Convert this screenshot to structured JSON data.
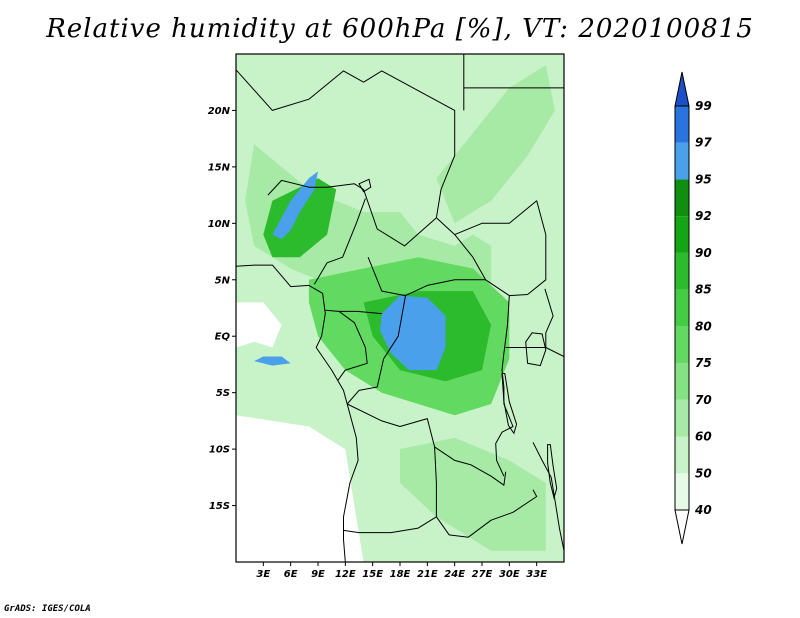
{
  "title": "Relative humidity at 600hPa [%], VT: 2020100815",
  "credit": "GrADS: IGES/COLA",
  "map": {
    "lon_range": [
      0,
      36
    ],
    "lat_range": [
      -20,
      25
    ],
    "lat_ticks": [
      {
        "value": 20,
        "label": "20N"
      },
      {
        "value": 15,
        "label": "15N"
      },
      {
        "value": 10,
        "label": "10N"
      },
      {
        "value": 5,
        "label": "5N"
      },
      {
        "value": 0,
        "label": "EQ"
      },
      {
        "value": -5,
        "label": "5S"
      },
      {
        "value": -10,
        "label": "10S"
      },
      {
        "value": -15,
        "label": "15S"
      }
    ],
    "lon_ticks": [
      {
        "value": 3,
        "label": "3E"
      },
      {
        "value": 6,
        "label": "6E"
      },
      {
        "value": 9,
        "label": "9E"
      },
      {
        "value": 12,
        "label": "12E"
      },
      {
        "value": 15,
        "label": "15E"
      },
      {
        "value": 18,
        "label": "18E"
      },
      {
        "value": 21,
        "label": "21E"
      },
      {
        "value": 24,
        "label": "24E"
      },
      {
        "value": 27,
        "label": "27E"
      },
      {
        "value": 30,
        "label": "30E"
      },
      {
        "value": 33,
        "label": "33E"
      }
    ]
  },
  "colorbar": {
    "levels": [
      "40",
      "50",
      "60",
      "70",
      "75",
      "80",
      "85",
      "90",
      "92",
      "95",
      "97",
      "99"
    ],
    "colors": [
      "#ffffff",
      "#e6fae6",
      "#c8f2c8",
      "#a6eaa6",
      "#84e284",
      "#62da62",
      "#45cc45",
      "#2cbb2c",
      "#14a514",
      "#0f8f0f",
      "#4aa0ea",
      "#2a74e0",
      "#1b4fc8"
    ]
  },
  "humidity_regions": [
    {
      "name": "sahel-moist-band",
      "color": "#a6eaa6",
      "lonlat": [
        [
          2,
          17
        ],
        [
          8,
          13
        ],
        [
          14,
          11
        ],
        [
          18,
          11
        ],
        [
          20,
          9
        ],
        [
          24,
          8
        ],
        [
          26,
          9
        ],
        [
          28,
          8
        ],
        [
          28,
          3
        ],
        [
          24,
          1
        ],
        [
          20,
          2
        ],
        [
          16,
          3
        ],
        [
          12,
          4
        ],
        [
          6,
          6
        ],
        [
          2,
          8
        ],
        [
          1,
          12
        ]
      ]
    },
    {
      "name": "northeast-streak",
      "color": "#a6eaa6",
      "lonlat": [
        [
          22,
          14
        ],
        [
          26,
          18
        ],
        [
          30,
          22
        ],
        [
          34,
          24
        ],
        [
          35,
          20
        ],
        [
          32,
          16
        ],
        [
          28,
          12
        ],
        [
          24,
          10
        ]
      ]
    },
    {
      "name": "congo-basin",
      "color": "#62da62",
      "lonlat": [
        [
          8,
          5
        ],
        [
          14,
          6
        ],
        [
          20,
          7
        ],
        [
          26,
          6
        ],
        [
          30,
          3
        ],
        [
          30,
          -2
        ],
        [
          28,
          -6
        ],
        [
          24,
          -7
        ],
        [
          20,
          -6
        ],
        [
          16,
          -5
        ],
        [
          12,
          -3
        ],
        [
          9,
          0
        ],
        [
          8,
          3
        ]
      ]
    },
    {
      "name": "south-highlands",
      "color": "#a6eaa6",
      "lonlat": [
        [
          18,
          -10
        ],
        [
          24,
          -9
        ],
        [
          30,
          -11
        ],
        [
          34,
          -13
        ],
        [
          34,
          -19
        ],
        [
          28,
          -19
        ],
        [
          22,
          -16
        ],
        [
          18,
          -13
        ]
      ]
    },
    {
      "name": "nigeria-core",
      "color": "#2cbb2c",
      "lonlat": [
        [
          4,
          12
        ],
        [
          9,
          14
        ],
        [
          11,
          13
        ],
        [
          10,
          9
        ],
        [
          7,
          7
        ],
        [
          4,
          7
        ],
        [
          3,
          9
        ]
      ]
    },
    {
      "name": "congo-core",
      "color": "#2cbb2c",
      "lonlat": [
        [
          14,
          3
        ],
        [
          20,
          4
        ],
        [
          26,
          4
        ],
        [
          28,
          1
        ],
        [
          27,
          -3
        ],
        [
          23,
          -4
        ],
        [
          18,
          -3
        ],
        [
          15,
          0
        ]
      ]
    },
    {
      "name": "nigeria-peak",
      "color": "#4aa0ea",
      "lonlat": [
        [
          4,
          9
        ],
        [
          6,
          12
        ],
        [
          8,
          14
        ],
        [
          9,
          14.6
        ],
        [
          8.6,
          13
        ],
        [
          7,
          11
        ],
        [
          6,
          9.4
        ],
        [
          5,
          8.6
        ]
      ]
    },
    {
      "name": "congo-peak",
      "color": "#4aa0ea",
      "lonlat": [
        [
          16,
          2
        ],
        [
          18,
          3.6
        ],
        [
          21,
          3.4
        ],
        [
          23,
          1.8
        ],
        [
          23,
          -1
        ],
        [
          22,
          -3
        ],
        [
          19,
          -3
        ],
        [
          17,
          -1.5
        ],
        [
          15.8,
          0.5
        ]
      ]
    },
    {
      "name": "gulf-guinea-peak",
      "color": "#4aa0ea",
      "lonlat": [
        [
          2,
          -2.2
        ],
        [
          4,
          -2.6
        ],
        [
          6,
          -2.4
        ],
        [
          5,
          -1.8
        ],
        [
          3,
          -1.8
        ]
      ]
    },
    {
      "name": "dry-west-ocean",
      "color": "#ffffff",
      "lonlat": [
        [
          0,
          3
        ],
        [
          3,
          3
        ],
        [
          5,
          1
        ],
        [
          4,
          -1
        ],
        [
          2,
          -0.5
        ],
        [
          0,
          -1
        ]
      ]
    },
    {
      "name": "dry-south-atlantic",
      "color": "#ffffff",
      "lonlat": [
        [
          0,
          -7
        ],
        [
          8,
          -8
        ],
        [
          12,
          -10
        ],
        [
          13,
          -15
        ],
        [
          14,
          -20
        ],
        [
          0,
          -20
        ]
      ]
    }
  ],
  "borders": [
    {
      "name": "coastline-west",
      "lonlat": [
        [
          0,
          6.2
        ],
        [
          2,
          6.3
        ],
        [
          4,
          6.3
        ],
        [
          6,
          4.4
        ],
        [
          8,
          4.5
        ],
        [
          9.5,
          3.8
        ],
        [
          9.8,
          2
        ],
        [
          9.4,
          0
        ],
        [
          8.8,
          -1
        ],
        [
          10.5,
          -3
        ],
        [
          11.8,
          -4.8
        ],
        [
          12.2,
          -6
        ],
        [
          13.2,
          -9
        ],
        [
          13.4,
          -11
        ],
        [
          12.5,
          -13
        ],
        [
          11.8,
          -16
        ],
        [
          11.8,
          -18
        ],
        [
          12,
          -20
        ]
      ]
    },
    {
      "name": "border-nigeria-niger",
      "lonlat": [
        [
          3.5,
          12.5
        ],
        [
          5,
          13.8
        ],
        [
          8,
          13.2
        ],
        [
          10,
          13.2
        ],
        [
          13,
          13.5
        ],
        [
          14,
          13
        ]
      ]
    },
    {
      "name": "border-nigeria-cameroon",
      "lonlat": [
        [
          8.6,
          4.6
        ],
        [
          10,
          6.5
        ],
        [
          11.7,
          7
        ],
        [
          13.2,
          10
        ],
        [
          14.2,
          12.2
        ]
      ]
    },
    {
      "name": "border-chad",
      "lonlat": [
        [
          14,
          13
        ],
        [
          15.5,
          9.5
        ],
        [
          18.5,
          8
        ],
        [
          22,
          10.5
        ],
        [
          22.5,
          13
        ],
        [
          24,
          16
        ],
        [
          24,
          20
        ],
        [
          16,
          23.5
        ],
        [
          14,
          22.5
        ]
      ]
    },
    {
      "name": "border-niger-libya",
      "lonlat": [
        [
          0,
          23.6
        ],
        [
          4,
          20
        ],
        [
          8,
          21
        ],
        [
          11.8,
          23.5
        ],
        [
          14,
          22.5
        ]
      ]
    },
    {
      "name": "border-libya-egypt",
      "lonlat": [
        [
          25,
          25
        ],
        [
          25,
          20
        ]
      ]
    },
    {
      "name": "border-sudan-egypt",
      "lonlat": [
        [
          25,
          22
        ],
        [
          36,
          22
        ]
      ]
    },
    {
      "name": "border-car",
      "lonlat": [
        [
          14.5,
          7
        ],
        [
          16,
          4
        ],
        [
          18.6,
          3.6
        ],
        [
          21,
          4.5
        ],
        [
          24,
          5
        ],
        [
          27.4,
          5
        ],
        [
          26,
          7
        ],
        [
          24,
          9
        ],
        [
          22,
          10.5
        ]
      ]
    },
    {
      "name": "border-south-sudan",
      "lonlat": [
        [
          24,
          9
        ],
        [
          27,
          10
        ],
        [
          30,
          10
        ],
        [
          33,
          12
        ],
        [
          34,
          9
        ],
        [
          34,
          5
        ],
        [
          32,
          3.7
        ],
        [
          30,
          3.6
        ],
        [
          27.4,
          5
        ]
      ]
    },
    {
      "name": "border-congo-drc",
      "lonlat": [
        [
          18.6,
          3.6
        ],
        [
          17.8,
          0
        ],
        [
          16.2,
          -2
        ],
        [
          15.5,
          -4.5
        ],
        [
          13.5,
          -4.8
        ],
        [
          12.2,
          -6
        ]
      ]
    },
    {
      "name": "border-gabon-congo",
      "lonlat": [
        [
          11.3,
          2.2
        ],
        [
          13,
          1.2
        ],
        [
          14.2,
          -1
        ],
        [
          14.4,
          -2.4
        ],
        [
          12,
          -3
        ],
        [
          11.2,
          -3.9
        ]
      ]
    },
    {
      "name": "border-cameroon-south",
      "lonlat": [
        [
          9.8,
          2.3
        ],
        [
          11.3,
          2.2
        ],
        [
          13.3,
          2.2
        ],
        [
          16,
          2
        ]
      ]
    },
    {
      "name": "border-drc-angola",
      "lonlat": [
        [
          12.2,
          -6
        ],
        [
          16,
          -7.5
        ],
        [
          18,
          -8
        ],
        [
          21,
          -7.3
        ],
        [
          21.8,
          -9.8
        ],
        [
          24,
          -11
        ],
        [
          25.8,
          -11.4
        ],
        [
          28,
          -12.4
        ],
        [
          29.4,
          -13.2
        ],
        [
          29.6,
          -12
        ]
      ]
    },
    {
      "name": "border-drc-east",
      "lonlat": [
        [
          30,
          3.6
        ],
        [
          29.8,
          1
        ],
        [
          29.4,
          -1.5
        ],
        [
          29.2,
          -3
        ],
        [
          29.4,
          -4.5
        ],
        [
          29.4,
          -6
        ],
        [
          30.4,
          -8
        ],
        [
          29.2,
          -8.5
        ],
        [
          28.5,
          -9.5
        ],
        [
          28.6,
          -11
        ],
        [
          29.4,
          -12.4
        ]
      ]
    },
    {
      "name": "border-angola-zambia-namibia",
      "lonlat": [
        [
          21.8,
          -9.8
        ],
        [
          22,
          -13
        ],
        [
          22,
          -16
        ],
        [
          20,
          -17
        ],
        [
          17,
          -17.4
        ],
        [
          13.5,
          -17.4
        ],
        [
          11.8,
          -17.2
        ]
      ]
    },
    {
      "name": "border-zambia-south",
      "lonlat": [
        [
          22,
          -16
        ],
        [
          23.4,
          -17.6
        ],
        [
          25.5,
          -17.8
        ],
        [
          28,
          -16.3
        ],
        [
          30.4,
          -15.6
        ],
        [
          33,
          -14.2
        ],
        [
          32.6,
          -13.6
        ]
      ]
    },
    {
      "name": "border-tanzania",
      "lonlat": [
        [
          29.6,
          -1
        ],
        [
          30.8,
          -1
        ],
        [
          34,
          -1
        ],
        [
          36,
          -1.8
        ]
      ]
    },
    {
      "name": "border-uganda-kenya",
      "lonlat": [
        [
          33.9,
          4.2
        ],
        [
          34.8,
          1.8
        ],
        [
          34,
          0.3
        ],
        [
          34,
          -1
        ]
      ]
    },
    {
      "name": "border-malawi",
      "lonlat": [
        [
          32.6,
          -9.4
        ],
        [
          33.6,
          -11
        ],
        [
          34.6,
          -12.5
        ],
        [
          35,
          -14.5
        ],
        [
          35.5,
          -17
        ],
        [
          36,
          -19
        ]
      ]
    }
  ],
  "lakes": [
    {
      "name": "lake-victoria",
      "lonlat": [
        [
          31.8,
          -0.5
        ],
        [
          32.5,
          0.3
        ],
        [
          33.6,
          0.2
        ],
        [
          34,
          -1.2
        ],
        [
          33.4,
          -2.6
        ],
        [
          32,
          -2.4
        ]
      ]
    },
    {
      "name": "lake-tanganyika",
      "lonlat": [
        [
          29.2,
          -3.3
        ],
        [
          29.5,
          -3.3
        ],
        [
          30,
          -5.8
        ],
        [
          30.8,
          -7.8
        ],
        [
          30.5,
          -8.6
        ],
        [
          29.9,
          -7.9
        ],
        [
          29.4,
          -5.8
        ]
      ]
    },
    {
      "name": "lake-malawi",
      "lonlat": [
        [
          34.2,
          -9.6
        ],
        [
          34.5,
          -9.6
        ],
        [
          34.8,
          -11.5
        ],
        [
          35.2,
          -13.5
        ],
        [
          34.9,
          -14.3
        ],
        [
          34.5,
          -13
        ],
        [
          34.2,
          -11.2
        ]
      ]
    },
    {
      "name": "lake-chad",
      "lonlat": [
        [
          13.5,
          13.5
        ],
        [
          14.6,
          13.9
        ],
        [
          14.8,
          13.2
        ],
        [
          14,
          12.8
        ]
      ]
    }
  ]
}
